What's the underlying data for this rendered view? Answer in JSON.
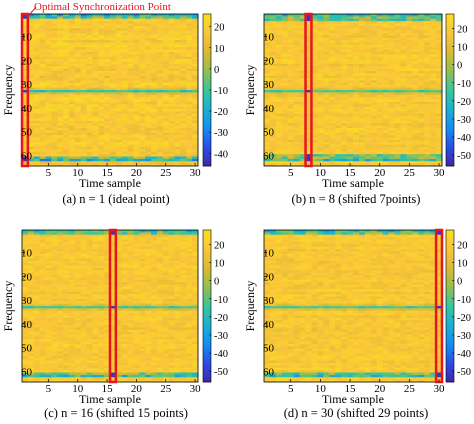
{
  "figure_annotation": "Optimal Synchronization Point",
  "colors": {
    "map": [
      "#3d26a8",
      "#2a4fe6",
      "#148ef2",
      "#1ab0d1",
      "#38c69a",
      "#92bf4f",
      "#d9ba32",
      "#fbc53a",
      "#f8e020"
    ],
    "marker": "#e8141e"
  },
  "chart_data": [
    {
      "type": "heatmap",
      "caption": "(a) n = 1 (ideal point)",
      "xlabel": "Time sample",
      "ylabel": "Frequency",
      "xlim": [
        0.5,
        30.5
      ],
      "ylim": [
        0.5,
        64.5
      ],
      "xticks": [
        5,
        10,
        15,
        20,
        25,
        30
      ],
      "yticks": [
        10,
        20,
        30,
        40,
        50,
        60
      ],
      "colorbar_ticks": [
        20,
        10,
        0,
        -10,
        -20,
        -30,
        -40
      ],
      "clim": [
        -46,
        26
      ],
      "highlight_column": 1,
      "bands": {
        "top_rows": [
          1,
          2
        ],
        "bottom_rows": [
          61,
          62
        ],
        "middle_row": 33
      },
      "value_range": [
        -46,
        26
      ]
    },
    {
      "type": "heatmap",
      "caption": "(b) n = 8 (shifted 7points)",
      "xlabel": "Time sample",
      "ylabel": "Frequency",
      "xlim": [
        0.5,
        30.5
      ],
      "ylim": [
        0.5,
        64.5
      ],
      "xticks": [
        5,
        10,
        15,
        20,
        25,
        30
      ],
      "yticks": [
        10,
        20,
        30,
        40,
        50,
        60
      ],
      "colorbar_ticks": [
        20,
        10,
        0,
        -10,
        -20,
        -30,
        -40,
        -50
      ],
      "clim": [
        -56,
        28
      ],
      "highlight_column": 8,
      "bands": {
        "top_rows": [
          1,
          2,
          3
        ],
        "bottom_rows": [
          60,
          61,
          62
        ],
        "middle_row": 33
      },
      "value_range": [
        -56,
        28
      ]
    },
    {
      "type": "heatmap",
      "caption": "(c) n = 16 (shifted 15 points)",
      "xlabel": "Time sample",
      "ylabel": "Frequency",
      "xlim": [
        0.5,
        30.5
      ],
      "ylim": [
        0.5,
        64.5
      ],
      "xticks": [
        5,
        10,
        15,
        20,
        25,
        30
      ],
      "yticks": [
        10,
        20,
        30,
        40,
        50,
        60
      ],
      "colorbar_ticks": [
        20,
        10,
        0,
        -10,
        -20,
        -30,
        -40,
        -50
      ],
      "clim": [
        -56,
        28
      ],
      "highlight_column": 16,
      "bands": {
        "top_rows": [
          1,
          2
        ],
        "bottom_rows": [
          61,
          62
        ],
        "middle_row": 33
      },
      "value_range": [
        -56,
        28
      ]
    },
    {
      "type": "heatmap",
      "caption": "(d) n = 30 (shifted 29 points)",
      "xlabel": "Time sample",
      "ylabel": "Frequency",
      "xlim": [
        0.5,
        30.5
      ],
      "ylim": [
        0.5,
        64.5
      ],
      "xticks": [
        5,
        10,
        15,
        20,
        25,
        30
      ],
      "yticks": [
        10,
        20,
        30,
        40,
        50,
        60
      ],
      "colorbar_ticks": [
        20,
        10,
        0,
        -10,
        -20,
        -30,
        -40,
        -50
      ],
      "clim": [
        -56,
        28
      ],
      "highlight_column": 30,
      "bands": {
        "top_rows": [
          1,
          2
        ],
        "bottom_rows": [
          61,
          62
        ],
        "middle_row": 33
      },
      "value_range": [
        -56,
        28
      ]
    }
  ]
}
